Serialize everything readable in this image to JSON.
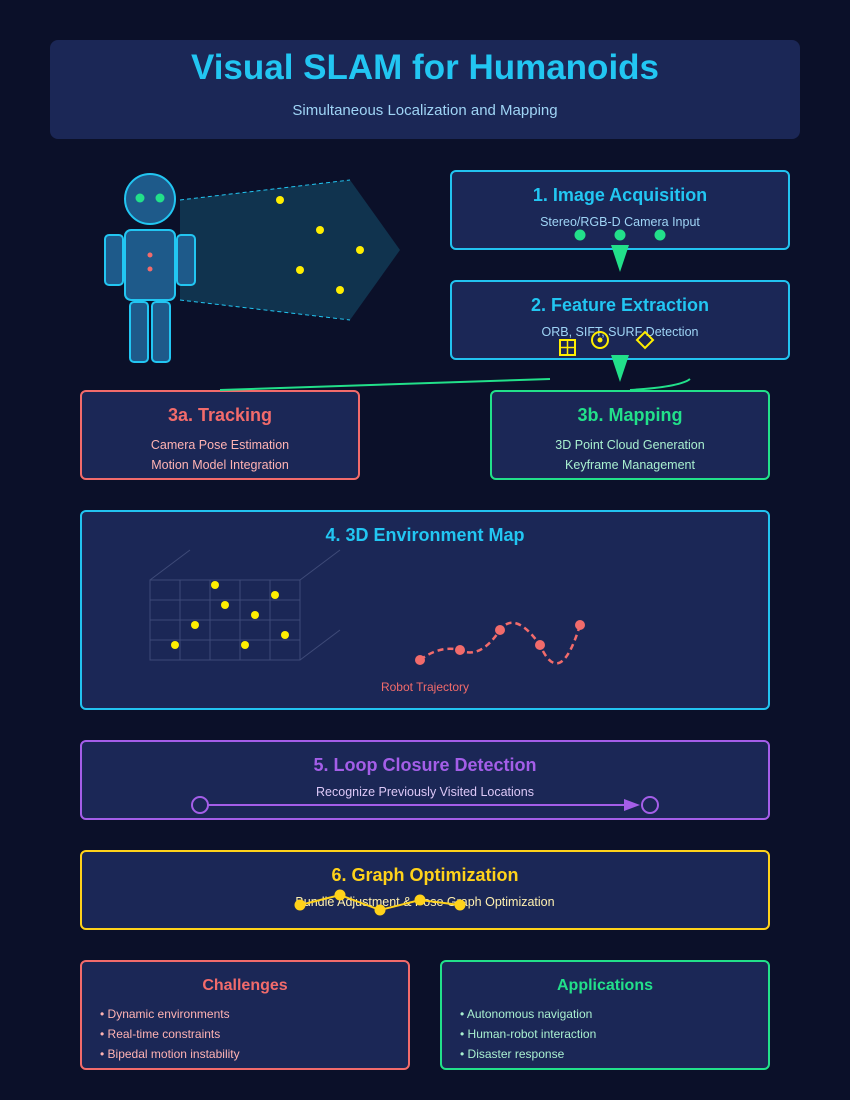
{
  "header": {
    "title": "Visual SLAM for Humanoids",
    "subtitle": "Simultaneous Localization and Mapping"
  },
  "steps": {
    "acquisition": {
      "title": "1. Image Acquisition",
      "desc": "Stereo/RGB-D Camera Input"
    },
    "extraction": {
      "title": "2. Feature Extraction",
      "desc": "ORB, SIFT, SURF Detection"
    },
    "tracking": {
      "title": "3a. Tracking",
      "line1": "Camera Pose Estimation",
      "line2": "Motion Model Integration"
    },
    "mapping": {
      "title": "3b. Mapping",
      "line1": "3D Point Cloud Generation",
      "line2": "Keyframe Management"
    },
    "env_map": {
      "title": "4. 3D Environment Map",
      "trajectory_label": "Robot Trajectory"
    },
    "loop": {
      "title": "5. Loop Closure Detection",
      "desc": "Recognize Previously Visited Locations"
    },
    "graph": {
      "title": "6. Graph Optimization",
      "desc": "Bundle Adjustment & Pose Graph Optimization"
    }
  },
  "challenges": {
    "title": "Challenges",
    "items": [
      "• Dynamic environments",
      "• Real-time constraints",
      "• Bipedal motion instability"
    ]
  },
  "applications": {
    "title": "Applications",
    "items": [
      "• Autonomous navigation",
      "• Human-robot interaction",
      "• Disaster response"
    ]
  },
  "colors": {
    "background": "#0b1029",
    "card": "#1b2756",
    "cyan": "#22c6f2",
    "red": "#f26b6b",
    "green": "#22e08a",
    "purple": "#a45ee8",
    "yellow": "#ffd21a"
  }
}
